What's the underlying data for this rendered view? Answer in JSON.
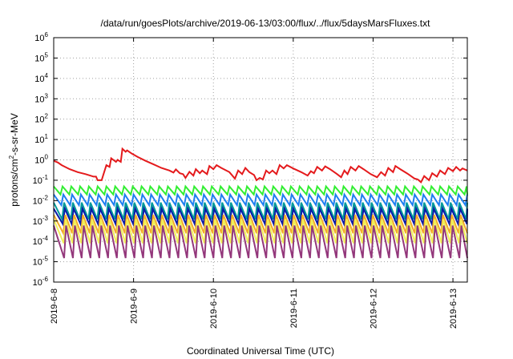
{
  "chart_data": {
    "type": "line",
    "title": "/data/run/goesPlots/archive/2019-06-13/03:00/flux/../flux/5daysMarsFluxes.txt",
    "xlabel": "Coordinated Universal Time (UTC)",
    "ylabel_base": "protons/cm",
    "ylabel_sup": "2",
    "ylabel_rest": "-s-sr-MeV",
    "x_domain_days": [
      0,
      5.18
    ],
    "x_ticks": [
      {
        "label": "2019-6-8",
        "day": 0
      },
      {
        "label": "2019-6-9",
        "day": 1
      },
      {
        "label": "2019-6-10",
        "day": 2
      },
      {
        "label": "2019-6-11",
        "day": 3
      },
      {
        "label": "2019-6-12",
        "day": 4
      },
      {
        "label": "2019-6-13",
        "day": 5
      }
    ],
    "y_scale": "log",
    "y_range_exp": [
      -6,
      6
    ],
    "y_ticks": [
      {
        "base": "10",
        "exp": "-6",
        "e": -6
      },
      {
        "base": "10",
        "exp": "-5",
        "e": -5
      },
      {
        "base": "10",
        "exp": "-4",
        "e": -4
      },
      {
        "base": "10",
        "exp": "-3",
        "e": -3
      },
      {
        "base": "10",
        "exp": "-2",
        "e": -2
      },
      {
        "base": "10",
        "exp": "-1",
        "e": -1
      },
      {
        "base": "10",
        "exp": "0",
        "e": 0
      },
      {
        "base": "10",
        "exp": "1",
        "e": 1
      },
      {
        "base": "10",
        "exp": "2",
        "e": 2
      },
      {
        "base": "10",
        "exp": "3",
        "e": 3
      },
      {
        "base": "10",
        "exp": "4",
        "e": 4
      },
      {
        "base": "10",
        "exp": "5",
        "e": 5
      },
      {
        "base": "10",
        "exp": "6",
        "e": 6
      }
    ],
    "grid": true,
    "series": [
      {
        "color": "#e41a1c",
        "points": [
          [
            0.0,
            0.9
          ],
          [
            0.05,
            0.75
          ],
          [
            0.1,
            0.55
          ],
          [
            0.2,
            0.35
          ],
          [
            0.3,
            0.25
          ],
          [
            0.4,
            0.2
          ],
          [
            0.5,
            0.15
          ],
          [
            0.53,
            0.15
          ],
          [
            0.55,
            0.1
          ],
          [
            0.6,
            0.1
          ],
          [
            0.66,
            0.55
          ],
          [
            0.7,
            0.45
          ],
          [
            0.72,
            1.2
          ],
          [
            0.78,
            0.8
          ],
          [
            0.8,
            1.0
          ],
          [
            0.84,
            0.8
          ],
          [
            0.86,
            3.5
          ],
          [
            0.9,
            2.5
          ],
          [
            0.92,
            2.9
          ],
          [
            0.98,
            2.0
          ],
          [
            1.05,
            1.4
          ],
          [
            1.15,
            0.9
          ],
          [
            1.25,
            0.6
          ],
          [
            1.35,
            0.4
          ],
          [
            1.45,
            0.3
          ],
          [
            1.5,
            0.24
          ],
          [
            1.53,
            0.34
          ],
          [
            1.58,
            0.22
          ],
          [
            1.62,
            0.2
          ],
          [
            1.65,
            0.13
          ],
          [
            1.7,
            0.26
          ],
          [
            1.75,
            0.17
          ],
          [
            1.78,
            0.35
          ],
          [
            1.83,
            0.22
          ],
          [
            1.86,
            0.3
          ],
          [
            1.92,
            0.2
          ],
          [
            1.95,
            0.5
          ],
          [
            2.0,
            0.35
          ],
          [
            2.04,
            0.55
          ],
          [
            2.1,
            0.4
          ],
          [
            2.2,
            0.25
          ],
          [
            2.27,
            0.12
          ],
          [
            2.31,
            0.3
          ],
          [
            2.36,
            0.2
          ],
          [
            2.4,
            0.4
          ],
          [
            2.45,
            0.25
          ],
          [
            2.51,
            0.18
          ],
          [
            2.54,
            0.1
          ],
          [
            2.58,
            0.13
          ],
          [
            2.62,
            0.11
          ],
          [
            2.66,
            0.3
          ],
          [
            2.7,
            0.22
          ],
          [
            2.74,
            0.3
          ],
          [
            2.79,
            0.2
          ],
          [
            2.83,
            0.55
          ],
          [
            2.88,
            0.38
          ],
          [
            2.92,
            0.55
          ],
          [
            3.0,
            0.38
          ],
          [
            3.1,
            0.25
          ],
          [
            3.18,
            0.17
          ],
          [
            3.22,
            0.28
          ],
          [
            3.26,
            0.22
          ],
          [
            3.3,
            0.45
          ],
          [
            3.36,
            0.3
          ],
          [
            3.4,
            0.48
          ],
          [
            3.46,
            0.35
          ],
          [
            3.55,
            0.2
          ],
          [
            3.6,
            0.14
          ],
          [
            3.64,
            0.3
          ],
          [
            3.68,
            0.2
          ],
          [
            3.72,
            0.45
          ],
          [
            3.78,
            0.3
          ],
          [
            3.82,
            0.5
          ],
          [
            3.88,
            0.35
          ],
          [
            3.97,
            0.2
          ],
          [
            4.05,
            0.14
          ],
          [
            4.1,
            0.25
          ],
          [
            4.15,
            0.17
          ],
          [
            4.19,
            0.4
          ],
          [
            4.25,
            0.25
          ],
          [
            4.28,
            0.5
          ],
          [
            4.34,
            0.35
          ],
          [
            4.44,
            0.2
          ],
          [
            4.52,
            0.12
          ],
          [
            4.56,
            0.11
          ],
          [
            4.6,
            0.08
          ],
          [
            4.64,
            0.16
          ],
          [
            4.7,
            0.1
          ],
          [
            4.74,
            0.22
          ],
          [
            4.8,
            0.15
          ],
          [
            4.84,
            0.3
          ],
          [
            4.9,
            0.2
          ],
          [
            4.94,
            0.4
          ],
          [
            5.0,
            0.28
          ],
          [
            5.04,
            0.45
          ],
          [
            5.09,
            0.3
          ],
          [
            5.12,
            0.38
          ],
          [
            5.18,
            0.3
          ]
        ]
      },
      {
        "color": "#33ee33",
        "hi": 0.05,
        "lo": 0.02,
        "period": 0.11,
        "phase": 0.0
      },
      {
        "color": "#1e7ff0",
        "hi": 0.02,
        "lo": 0.006,
        "period": 0.11,
        "phase": 0.01
      },
      {
        "color": "#009a9a",
        "hi": 0.008,
        "lo": 0.0012,
        "period": 0.11,
        "phase": 0.02
      },
      {
        "color": "#0a1aa8",
        "hi": 0.004,
        "lo": 0.0007,
        "period": 0.11,
        "phase": 0.03
      },
      {
        "color": "#f3a92a",
        "hi": 0.002,
        "lo": 0.00025,
        "period": 0.11,
        "phase": 0.035
      },
      {
        "color": "#f0f05a",
        "hi": 0.0012,
        "lo": 8e-05,
        "period": 0.11,
        "phase": 0.04
      },
      {
        "color": "#93377b",
        "hi": 0.0006,
        "lo": 1.5e-05,
        "period": 0.11,
        "phase": 0.045
      }
    ]
  }
}
